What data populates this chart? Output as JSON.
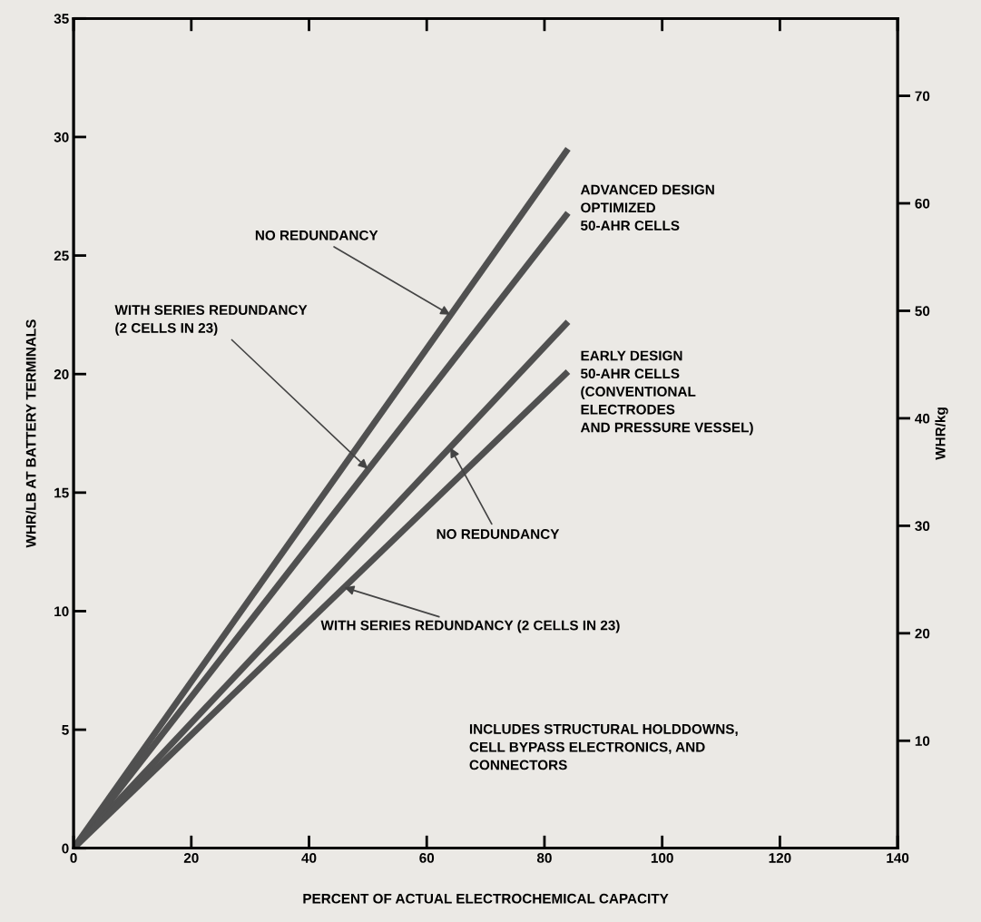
{
  "chart_data": {
    "type": "line",
    "xlabel": "PERCENT OF ACTUAL ELECTROCHEMICAL CAPACITY",
    "ylabel": "WHR/LB AT BATTERY TERMINALS",
    "y2label": "WHR/kg",
    "xlim": [
      0,
      140
    ],
    "xticks": [
      0,
      20,
      40,
      60,
      80,
      100,
      120,
      140
    ],
    "ylim": [
      0,
      35
    ],
    "yticks": [
      0,
      5,
      10,
      15,
      20,
      25,
      30,
      35
    ],
    "y2lim": [
      0,
      77.2
    ],
    "y2ticks": [
      10,
      20,
      30,
      40,
      50,
      60,
      70
    ],
    "grid": false,
    "legend": false,
    "marker": "none",
    "line_style": "solid",
    "x": [
      0,
      84
    ],
    "series": [
      {
        "color": "#505050",
        "values": [
          0,
          29.5
        ]
      },
      {
        "color": "#505050",
        "values": [
          0,
          26.8
        ]
      },
      {
        "color": "#505050",
        "values": [
          0,
          22.2
        ]
      },
      {
        "color": "#505050",
        "values": [
          0,
          20.1
        ]
      }
    ],
    "annotations": [
      {
        "text": "NO REDUNDANCY",
        "x": 64,
        "y": 22.5
      },
      {
        "text": "WITH SERIES REDUNDANCY\n(2 CELLS IN 23)",
        "x": 50,
        "y": 16.0
      },
      {
        "text": "NO REDUNDANCY",
        "x": 64,
        "y": 16.9
      },
      {
        "text": "WITH SERIES REDUNDANCY (2 CELLS IN 23)",
        "x": 46,
        "y": 11.0
      },
      "ADVANCED DESIGN\nOPTIMIZED\n50-AHR CELLS",
      "EARLY DESIGN\n50-AHR CELLS\n(CONVENTIONAL\nELECTRODES\nAND PRESSURE VESSEL)",
      "INCLUDES STRUCTURAL HOLDDOWNS,\nCELL BYPASS ELECTRONICS, AND\nCONNECTORS"
    ]
  }
}
